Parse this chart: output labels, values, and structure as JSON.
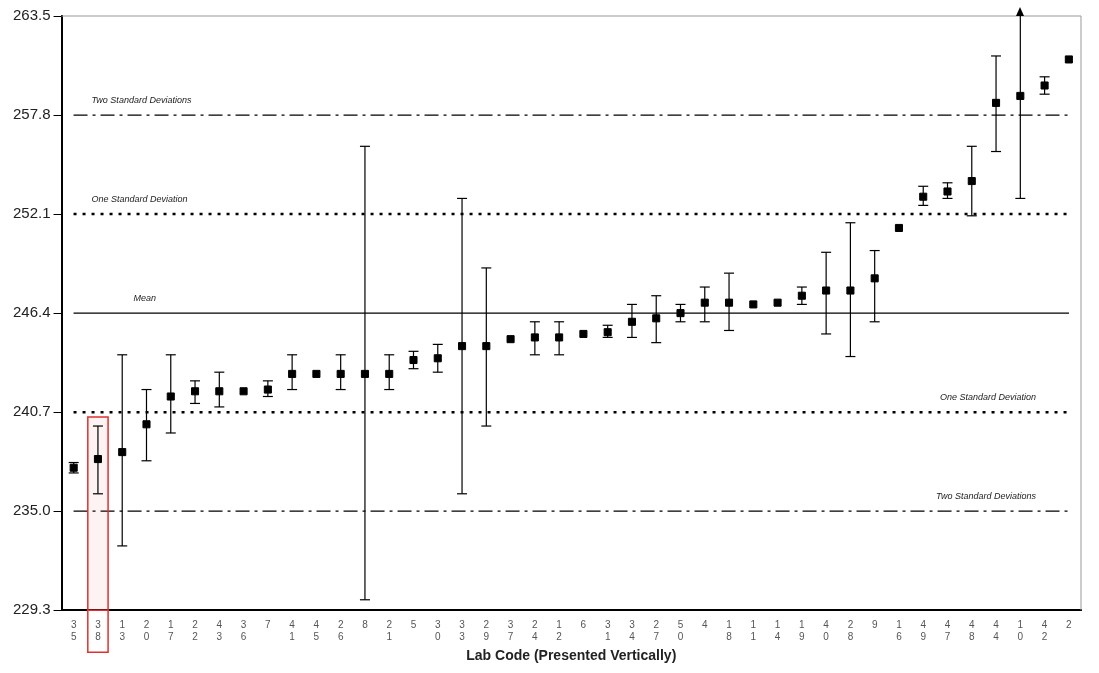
{
  "chart_data": {
    "type": "scatter",
    "xlabel": "Lab Code (Presented Vertically)",
    "categories": [
      "35",
      "38",
      "13",
      "20",
      "17",
      "22",
      "43",
      "36",
      "7",
      "41",
      "45",
      "26",
      "8",
      "21",
      "5",
      "30",
      "33",
      "29",
      "37",
      "24",
      "12",
      "6",
      "31",
      "34",
      "27",
      "50",
      "4",
      "18",
      "11",
      "14",
      "19",
      "40",
      "28",
      "9",
      "16",
      "49",
      "47",
      "48",
      "44",
      "10",
      "42",
      "2"
    ],
    "values": [
      237.5,
      238.0,
      238.4,
      240.0,
      241.6,
      241.9,
      241.9,
      241.9,
      242.0,
      242.9,
      242.9,
      242.9,
      242.9,
      242.9,
      243.7,
      243.8,
      244.5,
      244.5,
      244.9,
      245.0,
      245.0,
      245.2,
      245.3,
      245.9,
      246.1,
      246.4,
      247.0,
      247.0,
      246.9,
      247.0,
      247.4,
      247.7,
      247.7,
      248.4,
      251.3,
      253.1,
      253.4,
      254.0,
      258.5,
      258.9,
      259.5,
      261.0
    ],
    "errors": [
      [
        237.2,
        237.8
      ],
      [
        236.0,
        239.9
      ],
      [
        233.0,
        244.0
      ],
      [
        237.9,
        242.0
      ],
      [
        239.5,
        244.0
      ],
      [
        241.2,
        242.5
      ],
      [
        241.0,
        243.0
      ],
      null,
      [
        241.6,
        242.5
      ],
      [
        242.0,
        244.0
      ],
      null,
      [
        242.0,
        244.0
      ],
      [
        229.9,
        256.0
      ],
      [
        242.0,
        244.0
      ],
      [
        243.2,
        244.2
      ],
      [
        243.0,
        244.6
      ],
      [
        236.0,
        253.0
      ],
      [
        239.9,
        249.0
      ],
      null,
      [
        244.0,
        245.9
      ],
      [
        244.0,
        245.9
      ],
      null,
      [
        245.0,
        245.7
      ],
      [
        245.0,
        246.9
      ],
      [
        244.7,
        247.4
      ],
      [
        245.9,
        246.9
      ],
      [
        245.9,
        247.9
      ],
      [
        245.4,
        248.7
      ],
      null,
      null,
      [
        246.9,
        247.9
      ],
      [
        245.2,
        249.9
      ],
      [
        243.9,
        251.6
      ],
      [
        245.9,
        250.0
      ],
      null,
      [
        252.6,
        253.7
      ],
      [
        253.0,
        253.9
      ],
      [
        252.0,
        256.0
      ],
      [
        255.7,
        261.2
      ],
      [
        253.0,
        263.5
      ],
      [
        259.0,
        260.0
      ],
      null
    ],
    "color": "#000000",
    "marker": "square",
    "ylim": [
      229.3,
      263.5
    ],
    "yticks": [
      229.3,
      {
        "value": 235,
        "label": "235.0"
      },
      240.7,
      246.4,
      252.1,
      257.8,
      263.5
    ],
    "grid": false,
    "legend": false,
    "ref_lines": [
      {
        "axis": "y",
        "value": 257.8,
        "label": "Two Standard Deviations",
        "line_style": "dashed"
      },
      {
        "axis": "y",
        "value": 252.1,
        "label": "One Standard Deviation",
        "line_style": "dotted"
      },
      {
        "axis": "y",
        "value": 246.4,
        "label": "Mean",
        "line_style": "solid"
      },
      {
        "axis": "y",
        "value": 240.7,
        "label": "One Standard Deviation",
        "line_style": "dotted"
      },
      {
        "axis": "y",
        "value": 235.0,
        "label": "Two Standard Deviations",
        "line_style": "dashed"
      }
    ],
    "bands": [
      {
        "axis": "x",
        "from": "38",
        "to": "38",
        "color": "#e03030"
      }
    ]
  }
}
